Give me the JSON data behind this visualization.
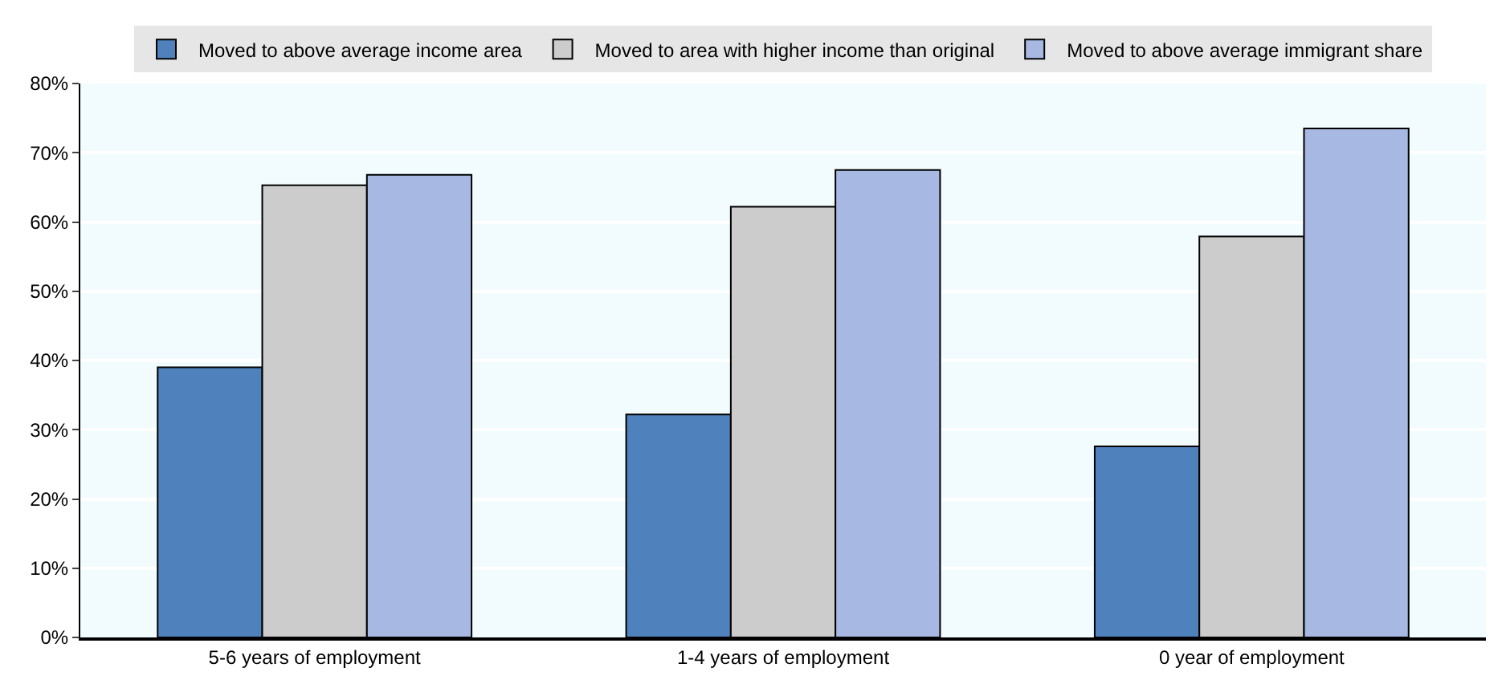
{
  "chart_data": {
    "type": "bar",
    "categories": [
      "5-6 years of employment",
      "1-4 years of employment",
      "0 year of employment"
    ],
    "series": [
      {
        "name": "Moved to above average income area",
        "color": "#4f81bd",
        "values": [
          39.0,
          32.2,
          27.6
        ]
      },
      {
        "name": "Moved to area with higher income than original",
        "color": "#cccccc",
        "values": [
          65.3,
          62.2,
          57.9
        ]
      },
      {
        "name": "Moved to above average immigrant share",
        "color": "#a7b8e2",
        "values": [
          66.8,
          67.5,
          73.5
        ]
      }
    ],
    "ylim": [
      0,
      80
    ],
    "yticks": [
      {
        "value": 0,
        "label": "0%"
      },
      {
        "value": 10,
        "label": "10%"
      },
      {
        "value": 20,
        "label": "20%"
      },
      {
        "value": 30,
        "label": "30%"
      },
      {
        "value": 40,
        "label": "40%"
      },
      {
        "value": 50,
        "label": "50%"
      },
      {
        "value": 60,
        "label": "60%"
      },
      {
        "value": 70,
        "label": "70%"
      },
      {
        "value": 80,
        "label": "80%"
      }
    ],
    "grid": "y",
    "legend": "top"
  }
}
